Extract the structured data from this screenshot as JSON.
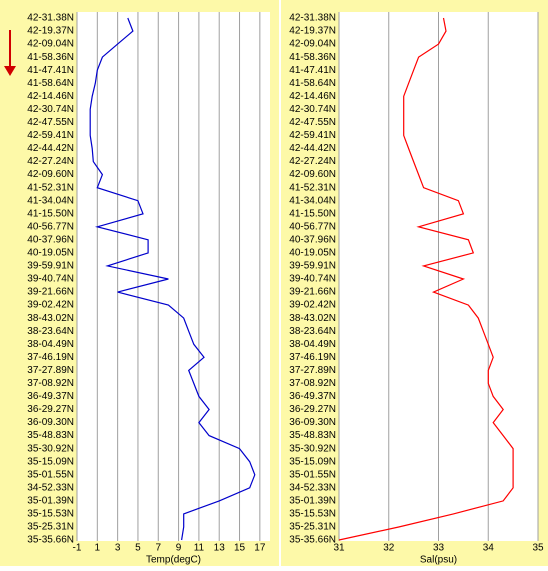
{
  "chart_data": [
    {
      "type": "line",
      "categories": [
        "42-31.38N",
        "42-19.37N",
        "42-09.04N",
        "41-58.36N",
        "41-47.41N",
        "41-58.64N",
        "42-14.46N",
        "42-30.74N",
        "42-47.55N",
        "42-59.41N",
        "42-44.42N",
        "42-27.24N",
        "42-09.60N",
        "41-52.31N",
        "41-34.04N",
        "41-15.50N",
        "40-56.77N",
        "40-37.96N",
        "40-19.05N",
        "39-59.91N",
        "39-40.74N",
        "39-21.66N",
        "39-02.42N",
        "38-43.02N",
        "38-23.64N",
        "38-04.49N",
        "37-46.19N",
        "37-27.89N",
        "37-08.92N",
        "36-49.37N",
        "36-29.27N",
        "36-09.30N",
        "35-48.83N",
        "35-30.92N",
        "35-15.09N",
        "35-01.55N",
        "34-52.33N",
        "35-01.39N",
        "35-15.53N",
        "35-25.31N",
        "35-35.66N"
      ],
      "xlabel": "Temp(degC)",
      "xlim": [
        -1,
        18
      ],
      "xticks": [
        -1,
        1,
        3,
        5,
        7,
        9,
        11,
        13,
        15,
        17
      ],
      "grid": true,
      "series": [
        {
          "name": "Temp",
          "color": "#0000cc",
          "values": [
            4,
            4.5,
            3,
            1.5,
            1,
            0.8,
            0.5,
            0.3,
            0.3,
            0.3,
            0.5,
            0.6,
            1.5,
            1,
            5,
            5.5,
            1,
            6,
            6,
            2,
            8,
            3,
            8,
            9.5,
            10,
            10.5,
            11.5,
            10,
            10.5,
            11,
            12,
            11,
            12,
            15,
            16,
            16.5,
            16,
            13,
            9.5,
            9.5,
            9.3
          ]
        }
      ]
    },
    {
      "type": "line",
      "categories": [
        "42-31.38N",
        "42-19.37N",
        "42-09.04N",
        "41-58.36N",
        "41-47.41N",
        "41-58.64N",
        "42-14.46N",
        "42-30.74N",
        "42-47.55N",
        "42-59.41N",
        "42-44.42N",
        "42-27.24N",
        "42-09.60N",
        "41-52.31N",
        "41-34.04N",
        "41-15.50N",
        "40-56.77N",
        "40-37.96N",
        "40-19.05N",
        "39-59.91N",
        "39-40.74N",
        "39-21.66N",
        "39-02.42N",
        "38-43.02N",
        "38-23.64N",
        "38-04.49N",
        "37-46.19N",
        "37-27.89N",
        "37-08.92N",
        "36-49.37N",
        "36-29.27N",
        "36-09.30N",
        "35-48.83N",
        "35-30.92N",
        "35-15.09N",
        "35-01.55N",
        "34-52.33N",
        "35-01.39N",
        "35-15.53N",
        "35-25.31N",
        "35-35.66N"
      ],
      "xlabel": "Sal(psu)",
      "xlim": [
        31,
        35
      ],
      "xticks": [
        31,
        32,
        33,
        34,
        35
      ],
      "grid": true,
      "series": [
        {
          "name": "Sal",
          "color": "#ff0000",
          "values": [
            33.1,
            33.15,
            33.0,
            32.6,
            32.5,
            32.4,
            32.3,
            32.3,
            32.3,
            32.3,
            32.4,
            32.5,
            32.6,
            32.7,
            33.4,
            33.5,
            32.6,
            33.6,
            33.7,
            32.7,
            33.5,
            32.9,
            33.6,
            33.8,
            33.9,
            34.0,
            34.1,
            34.0,
            34.0,
            34.1,
            34.3,
            34.1,
            34.3,
            34.5,
            34.5,
            34.5,
            34.5,
            34.3,
            33.3,
            32.2,
            31.0
          ]
        }
      ]
    }
  ]
}
